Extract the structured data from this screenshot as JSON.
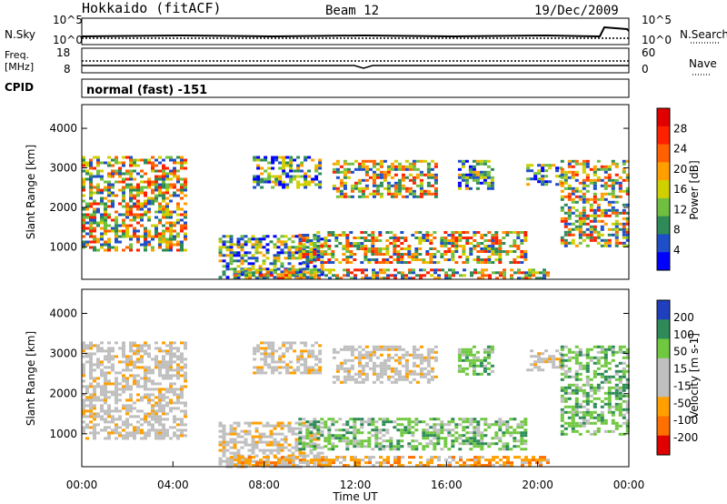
{
  "header": {
    "station": "Hokkaido (fitACF)",
    "beam": "Beam 12",
    "date": "19/Dec/2009"
  },
  "meta_labels": {
    "nsky": "N.Sky",
    "nsearch": "N.Search",
    "freq": "Freq.",
    "freq_unit": "[MHz]",
    "nave": "Nave",
    "cpid": "CPID",
    "cpid_value": "normal (fast) -151",
    "nsky_ticks": [
      "10^5",
      "10^0"
    ],
    "nsearch_ticks": [
      "10^5",
      "10^0"
    ],
    "freq_ticks": [
      "18",
      "8"
    ],
    "nave_ticks": [
      "60",
      "0"
    ]
  },
  "colors": {
    "power_scale": [
      "#0000ff",
      "#1f4fc8",
      "#2e8b57",
      "#6fbf40",
      "#d0d000",
      "#ffa000",
      "#ff6000",
      "#ff2000",
      "#e00000"
    ],
    "velocity_scale": [
      "#1f3fbf",
      "#2e8b57",
      "#6fc840",
      "#bfbfbf",
      "#bfbfbf",
      "#ffa000",
      "#ff7000",
      "#e00000"
    ]
  },
  "chart_data": [
    {
      "type": "heatmap",
      "title": "Power",
      "ylabel": "Slant Range [km]",
      "colorbar_label": "Power [dB]",
      "colorbar_ticks": [
        "4",
        "8",
        "12",
        "16",
        "20",
        "24",
        "28"
      ],
      "yticks": [
        "1000",
        "2000",
        "3000",
        "4000"
      ],
      "ylim": [
        180,
        4600
      ],
      "xlim": [
        0,
        24
      ],
      "regions": [
        {
          "x": [
            0.0,
            4.5
          ],
          "y": [
            900,
            3300
          ],
          "level": "high"
        },
        {
          "x": [
            6.0,
            10.5
          ],
          "y": [
            200,
            1300
          ],
          "level": "mixed"
        },
        {
          "x": [
            7.5,
            10.5
          ],
          "y": [
            2500,
            3300
          ],
          "level": "mixed"
        },
        {
          "x": [
            9.5,
            19.5
          ],
          "y": [
            600,
            1400
          ],
          "level": "high"
        },
        {
          "x": [
            11.0,
            15.5
          ],
          "y": [
            2300,
            3200
          ],
          "level": "high"
        },
        {
          "x": [
            6.5,
            20.5
          ],
          "y": [
            200,
            450
          ],
          "level": "high"
        },
        {
          "x": [
            16.5,
            18.0
          ],
          "y": [
            2500,
            3200
          ],
          "level": "mixed"
        },
        {
          "x": [
            19.5,
            21.0
          ],
          "y": [
            2600,
            3100
          ],
          "level": "mixed"
        },
        {
          "x": [
            21.0,
            24.0
          ],
          "y": [
            1000,
            3200
          ],
          "level": "high"
        }
      ]
    },
    {
      "type": "heatmap",
      "title": "Velocity",
      "ylabel": "Slant Range [km]",
      "xlabel": "Time UT",
      "colorbar_label": "Velocity [m s-1]",
      "colorbar_ticks": [
        "200",
        "100",
        "50",
        "15",
        "-15",
        "-50",
        "-100",
        "-200"
      ],
      "yticks": [
        "1000",
        "2000",
        "3000",
        "4000"
      ],
      "xticks": [
        "00:00",
        "04:00",
        "08:00",
        "12:00",
        "16:00",
        "20:00",
        "00:00"
      ],
      "ylim": [
        180,
        4600
      ],
      "xlim": [
        0,
        24
      ],
      "regions": [
        {
          "x": [
            0.0,
            4.5
          ],
          "y": [
            900,
            3300
          ],
          "level": "near-zero"
        },
        {
          "x": [
            6.0,
            10.5
          ],
          "y": [
            200,
            1300
          ],
          "level": "near-zero"
        },
        {
          "x": [
            7.5,
            10.5
          ],
          "y": [
            2500,
            3300
          ],
          "level": "near-zero"
        },
        {
          "x": [
            9.5,
            19.5
          ],
          "y": [
            600,
            1400
          ],
          "level": "positive"
        },
        {
          "x": [
            11.0,
            15.5
          ],
          "y": [
            2300,
            3200
          ],
          "level": "near-zero"
        },
        {
          "x": [
            6.5,
            20.5
          ],
          "y": [
            200,
            450
          ],
          "level": "negative"
        },
        {
          "x": [
            16.5,
            18.0
          ],
          "y": [
            2500,
            3200
          ],
          "level": "positive"
        },
        {
          "x": [
            19.5,
            21.0
          ],
          "y": [
            2600,
            3100
          ],
          "level": "near-zero"
        },
        {
          "x": [
            21.0,
            24.0
          ],
          "y": [
            1000,
            3200
          ],
          "level": "positive"
        }
      ]
    }
  ]
}
